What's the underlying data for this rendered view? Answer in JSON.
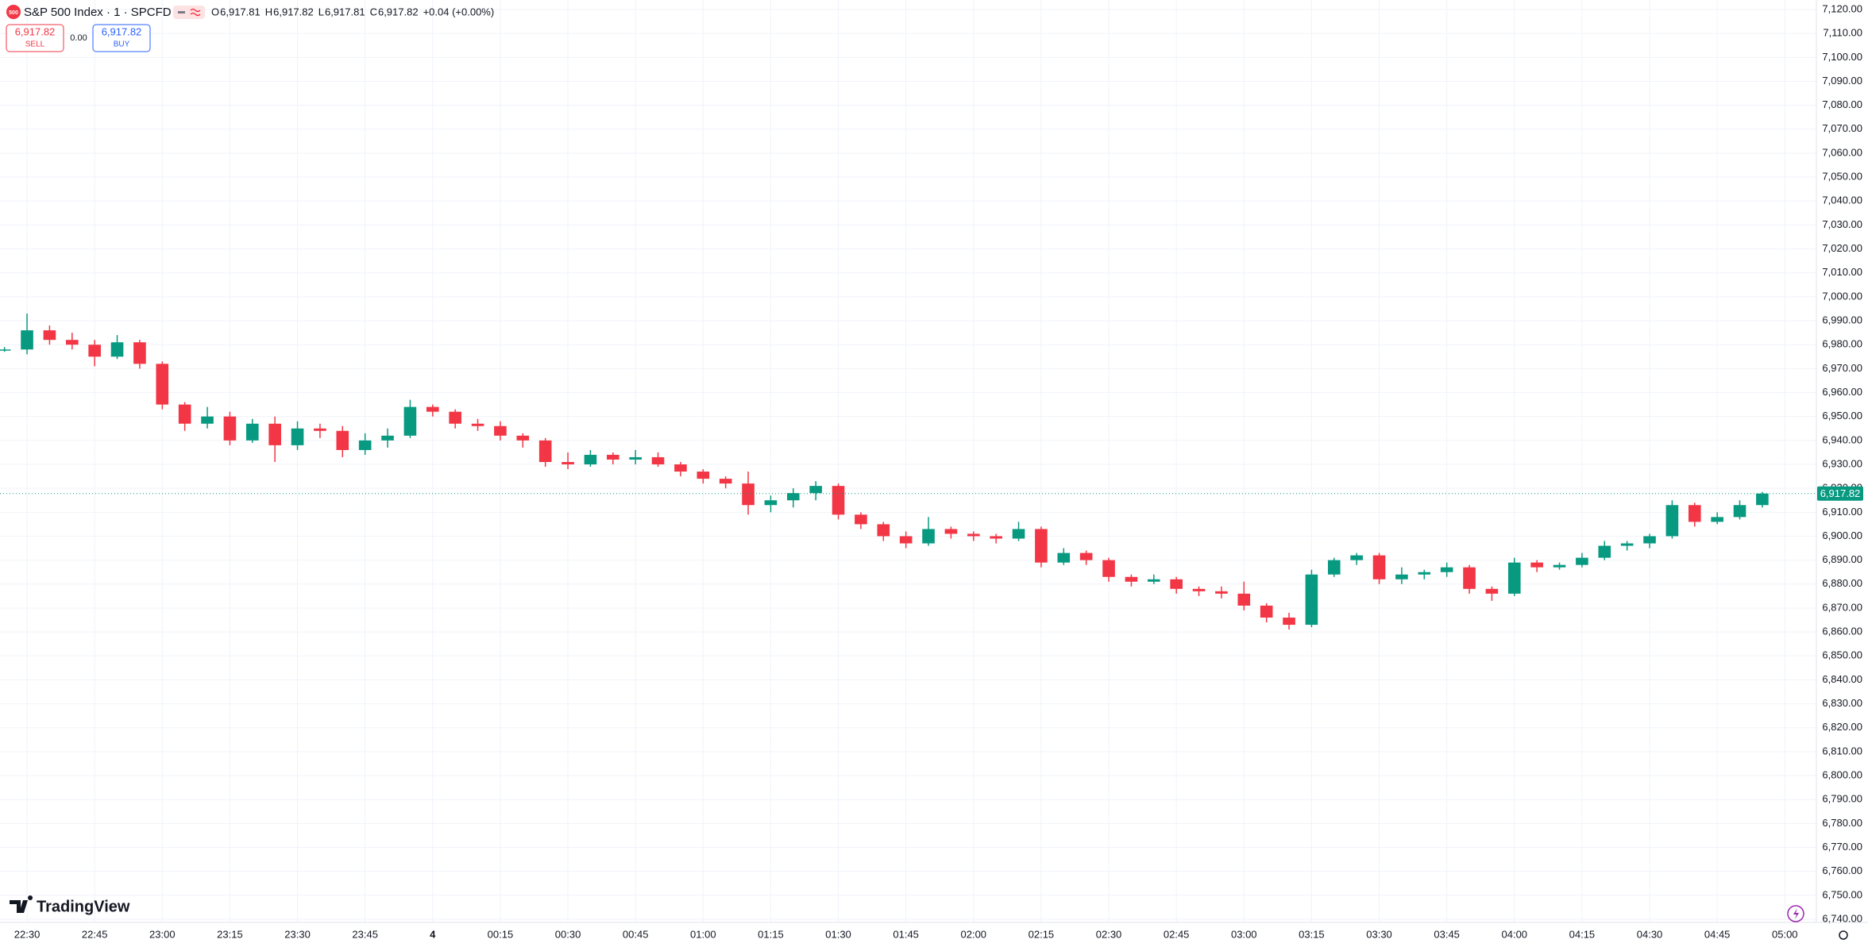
{
  "header": {
    "symbol": "S&P 500 Index · 1 · SPCFD",
    "logo": "500",
    "ohlc": [
      {
        "label": "O",
        "value": "6,917.81"
      },
      {
        "label": "H",
        "value": "6,917.82"
      },
      {
        "label": "L",
        "value": "6,917.81"
      },
      {
        "label": "C",
        "value": "6,917.82"
      }
    ],
    "change": "+0.04 (+0.00%)",
    "sell": {
      "price": "6,917.82",
      "label": "SELL"
    },
    "spread": "0.00",
    "buy": {
      "price": "6,917.82",
      "label": "BUY"
    }
  },
  "branding": "TradingView",
  "chart_data": {
    "type": "candlestick",
    "up_color": "#089981",
    "down_color": "#f23645",
    "grid": true,
    "xlim": [
      "22:24",
      "05:07"
    ],
    "ylim": [
      6740,
      7120
    ],
    "last_price": {
      "value": 6917.82,
      "label": "6,917.82"
    },
    "xticks": [
      "22:30",
      "22:45",
      "23:00",
      "23:15",
      "23:30",
      "23:45",
      {
        "value": "00:00",
        "label": "4"
      },
      "00:15",
      "00:30",
      "00:45",
      "01:00",
      "01:15",
      "01:30",
      "01:45",
      "02:00",
      "02:15",
      "02:30",
      "02:45",
      "03:00",
      "03:15",
      "03:30",
      "03:45",
      "04:00",
      "04:15",
      "04:30",
      "04:45",
      "05:00"
    ],
    "yticks": [
      {
        "value": 7120,
        "label": "7,120.00"
      },
      {
        "value": 7110,
        "label": "7,110.00"
      },
      {
        "value": 7100,
        "label": "7,100.00"
      },
      {
        "value": 7090,
        "label": "7,090.00"
      },
      {
        "value": 7080,
        "label": "7,080.00"
      },
      {
        "value": 7070,
        "label": "7,070.00"
      },
      {
        "value": 7060,
        "label": "7,060.00"
      },
      {
        "value": 7050,
        "label": "7,050.00"
      },
      {
        "value": 7040,
        "label": "7,040.00"
      },
      {
        "value": 7030,
        "label": "7,030.00"
      },
      {
        "value": 7020,
        "label": "7,020.00"
      },
      {
        "value": 7010,
        "label": "7,010.00"
      },
      {
        "value": 7000,
        "label": "7,000.00"
      },
      {
        "value": 6990,
        "label": "6,990.00"
      },
      {
        "value": 6980,
        "label": "6,980.00"
      },
      {
        "value": 6970,
        "label": "6,970.00"
      },
      {
        "value": 6960,
        "label": "6,960.00"
      },
      {
        "value": 6950,
        "label": "6,950.00"
      },
      {
        "value": 6940,
        "label": "6,940.00"
      },
      {
        "value": 6930,
        "label": "6,930.00"
      },
      {
        "value": 6920,
        "label": "6,920.00"
      },
      {
        "value": 6910,
        "label": "6,910.00"
      },
      {
        "value": 6900,
        "label": "6,900.00"
      },
      {
        "value": 6890,
        "label": "6,890.00"
      },
      {
        "value": 6880,
        "label": "6,880.00"
      },
      {
        "value": 6870,
        "label": "6,870.00"
      },
      {
        "value": 6860,
        "label": "6,860.00"
      },
      {
        "value": 6850,
        "label": "6,850.00"
      },
      {
        "value": 6840,
        "label": "6,840.00"
      },
      {
        "value": 6830,
        "label": "6,830.00"
      },
      {
        "value": 6820,
        "label": "6,820.00"
      },
      {
        "value": 6810,
        "label": "6,810.00"
      },
      {
        "value": 6800,
        "label": "6,800.00"
      },
      {
        "value": 6790,
        "label": "6,790.00"
      },
      {
        "value": 6780,
        "label": "6,780.00"
      },
      {
        "value": 6770,
        "label": "6,770.00"
      },
      {
        "value": 6760,
        "label": "6,760.00"
      },
      {
        "value": 6750,
        "label": "6,750.00"
      },
      {
        "value": 6740,
        "label": "6,740.00"
      }
    ],
    "x": [
      "22:25",
      "22:30",
      "22:35",
      "22:40",
      "22:45",
      "22:50",
      "22:55",
      "23:00",
      "23:05",
      "23:10",
      "23:15",
      "23:20",
      "23:25",
      "23:30",
      "23:35",
      "23:40",
      "23:45",
      "23:50",
      "23:55",
      "00:00",
      "00:05",
      "00:10",
      "00:15",
      "00:20",
      "00:25",
      "00:30",
      "00:35",
      "00:40",
      "00:45",
      "00:50",
      "00:55",
      "01:00",
      "01:05",
      "01:10",
      "01:15",
      "01:20",
      "01:25",
      "01:30",
      "01:35",
      "01:40",
      "01:45",
      "01:50",
      "01:55",
      "02:00",
      "02:05",
      "02:10",
      "02:15",
      "02:20",
      "02:25",
      "02:30",
      "02:35",
      "02:40",
      "02:45",
      "02:50",
      "02:55",
      "03:00",
      "03:05",
      "03:10",
      "03:15",
      "03:20",
      "03:25",
      "03:30",
      "03:35",
      "03:40",
      "03:45",
      "03:50",
      "03:55",
      "04:00",
      "04:05",
      "04:10",
      "04:15",
      "04:20",
      "04:25",
      "04:30",
      "04:35",
      "04:40",
      "04:45",
      "04:50",
      "04:55"
    ],
    "open": [
      6978,
      6978,
      6986,
      6982,
      6980,
      6975,
      6981,
      6972,
      6955,
      6947,
      6950,
      6940,
      6947,
      6938,
      6945,
      6944,
      6936,
      6940,
      6942,
      6954,
      6952,
      6947,
      6946,
      6942,
      6940,
      6931,
      6930,
      6934,
      6932,
      6933,
      6930,
      6927,
      6924,
      6922,
      6913,
      6915,
      6918,
      6921,
      6909,
      6905,
      6900,
      6897,
      6903,
      6901,
      6900,
      6899,
      6903,
      6889,
      6893,
      6890,
      6883,
      6881,
      6882,
      6878,
      6877,
      6876,
      6871,
      6866,
      6863,
      6884,
      6890,
      6892,
      6882,
      6884,
      6885,
      6887,
      6878,
      6876,
      6889,
      6887,
      6888,
      6891,
      6896,
      6897,
      6900,
      6913,
      6906,
      6908,
      6913
    ],
    "high": [
      6979,
      6993,
      6988,
      6985,
      6982,
      6984,
      6982,
      6973,
      6956,
      6954,
      6952,
      6949,
      6950,
      6948,
      6947,
      6946,
      6943,
      6945,
      6957,
      6955,
      6953,
      6949,
      6948,
      6943,
      6941,
      6935,
      6936,
      6935,
      6936,
      6935,
      6931,
      6928,
      6925,
      6927,
      6917,
      6920,
      6923,
      6922,
      6910,
      6906,
      6902,
      6908,
      6904,
      6902,
      6901,
      6906,
      6904,
      6895,
      6894,
      6891,
      6884,
      6884,
      6883,
      6879,
      6879,
      6881,
      6872,
      6868,
      6886,
      6891,
      6893,
      6893,
      6887,
      6886,
      6889,
      6888,
      6879,
      6891,
      6890,
      6889,
      6893,
      6898,
      6898,
      6901,
      6915,
      6914,
      6910,
      6915,
      6918.5
    ],
    "low": [
      6977,
      6976,
      6980,
      6978,
      6971,
      6974,
      6970,
      6953,
      6944,
      6945,
      6938,
      6939,
      6931,
      6936,
      6941,
      6933,
      6934,
      6937,
      6941,
      6950,
      6945,
      6944,
      6940,
      6937,
      6929,
      6928,
      6929,
      6930,
      6930,
      6929,
      6925,
      6922,
      6920,
      6909,
      6910,
      6912,
      6915,
      6907,
      6903,
      6898,
      6895,
      6896,
      6899,
      6898,
      6897,
      6898,
      6887,
      6888,
      6888,
      6881,
      6879,
      6880,
      6876,
      6875,
      6874,
      6869,
      6864,
      6861,
      6862,
      6883,
      6888,
      6880,
      6880,
      6882,
      6883,
      6876,
      6873,
      6875,
      6885,
      6886,
      6887,
      6890,
      6894,
      6895,
      6899,
      6904,
      6905,
      6907,
      6912
    ],
    "close": [
      6978,
      6986,
      6982,
      6980,
      6975,
      6981,
      6972,
      6955,
      6947,
      6950,
      6940,
      6947,
      6938,
      6945,
      6944,
      6936,
      6940,
      6942,
      6954,
      6952,
      6947,
      6946,
      6942,
      6940,
      6931,
      6930,
      6934,
      6932,
      6933,
      6930,
      6927,
      6924,
      6922,
      6913,
      6915,
      6918,
      6921,
      6909,
      6905,
      6900,
      6897,
      6903,
      6901,
      6900,
      6899,
      6903,
      6889,
      6893,
      6890,
      6883,
      6881,
      6882,
      6878,
      6877,
      6876,
      6871,
      6866,
      6863,
      6884,
      6890,
      6892,
      6882,
      6884,
      6885,
      6887,
      6878,
      6876,
      6889,
      6887,
      6888,
      6891,
      6896,
      6897,
      6900,
      6913,
      6906,
      6908,
      6913,
      6917.82
    ]
  }
}
